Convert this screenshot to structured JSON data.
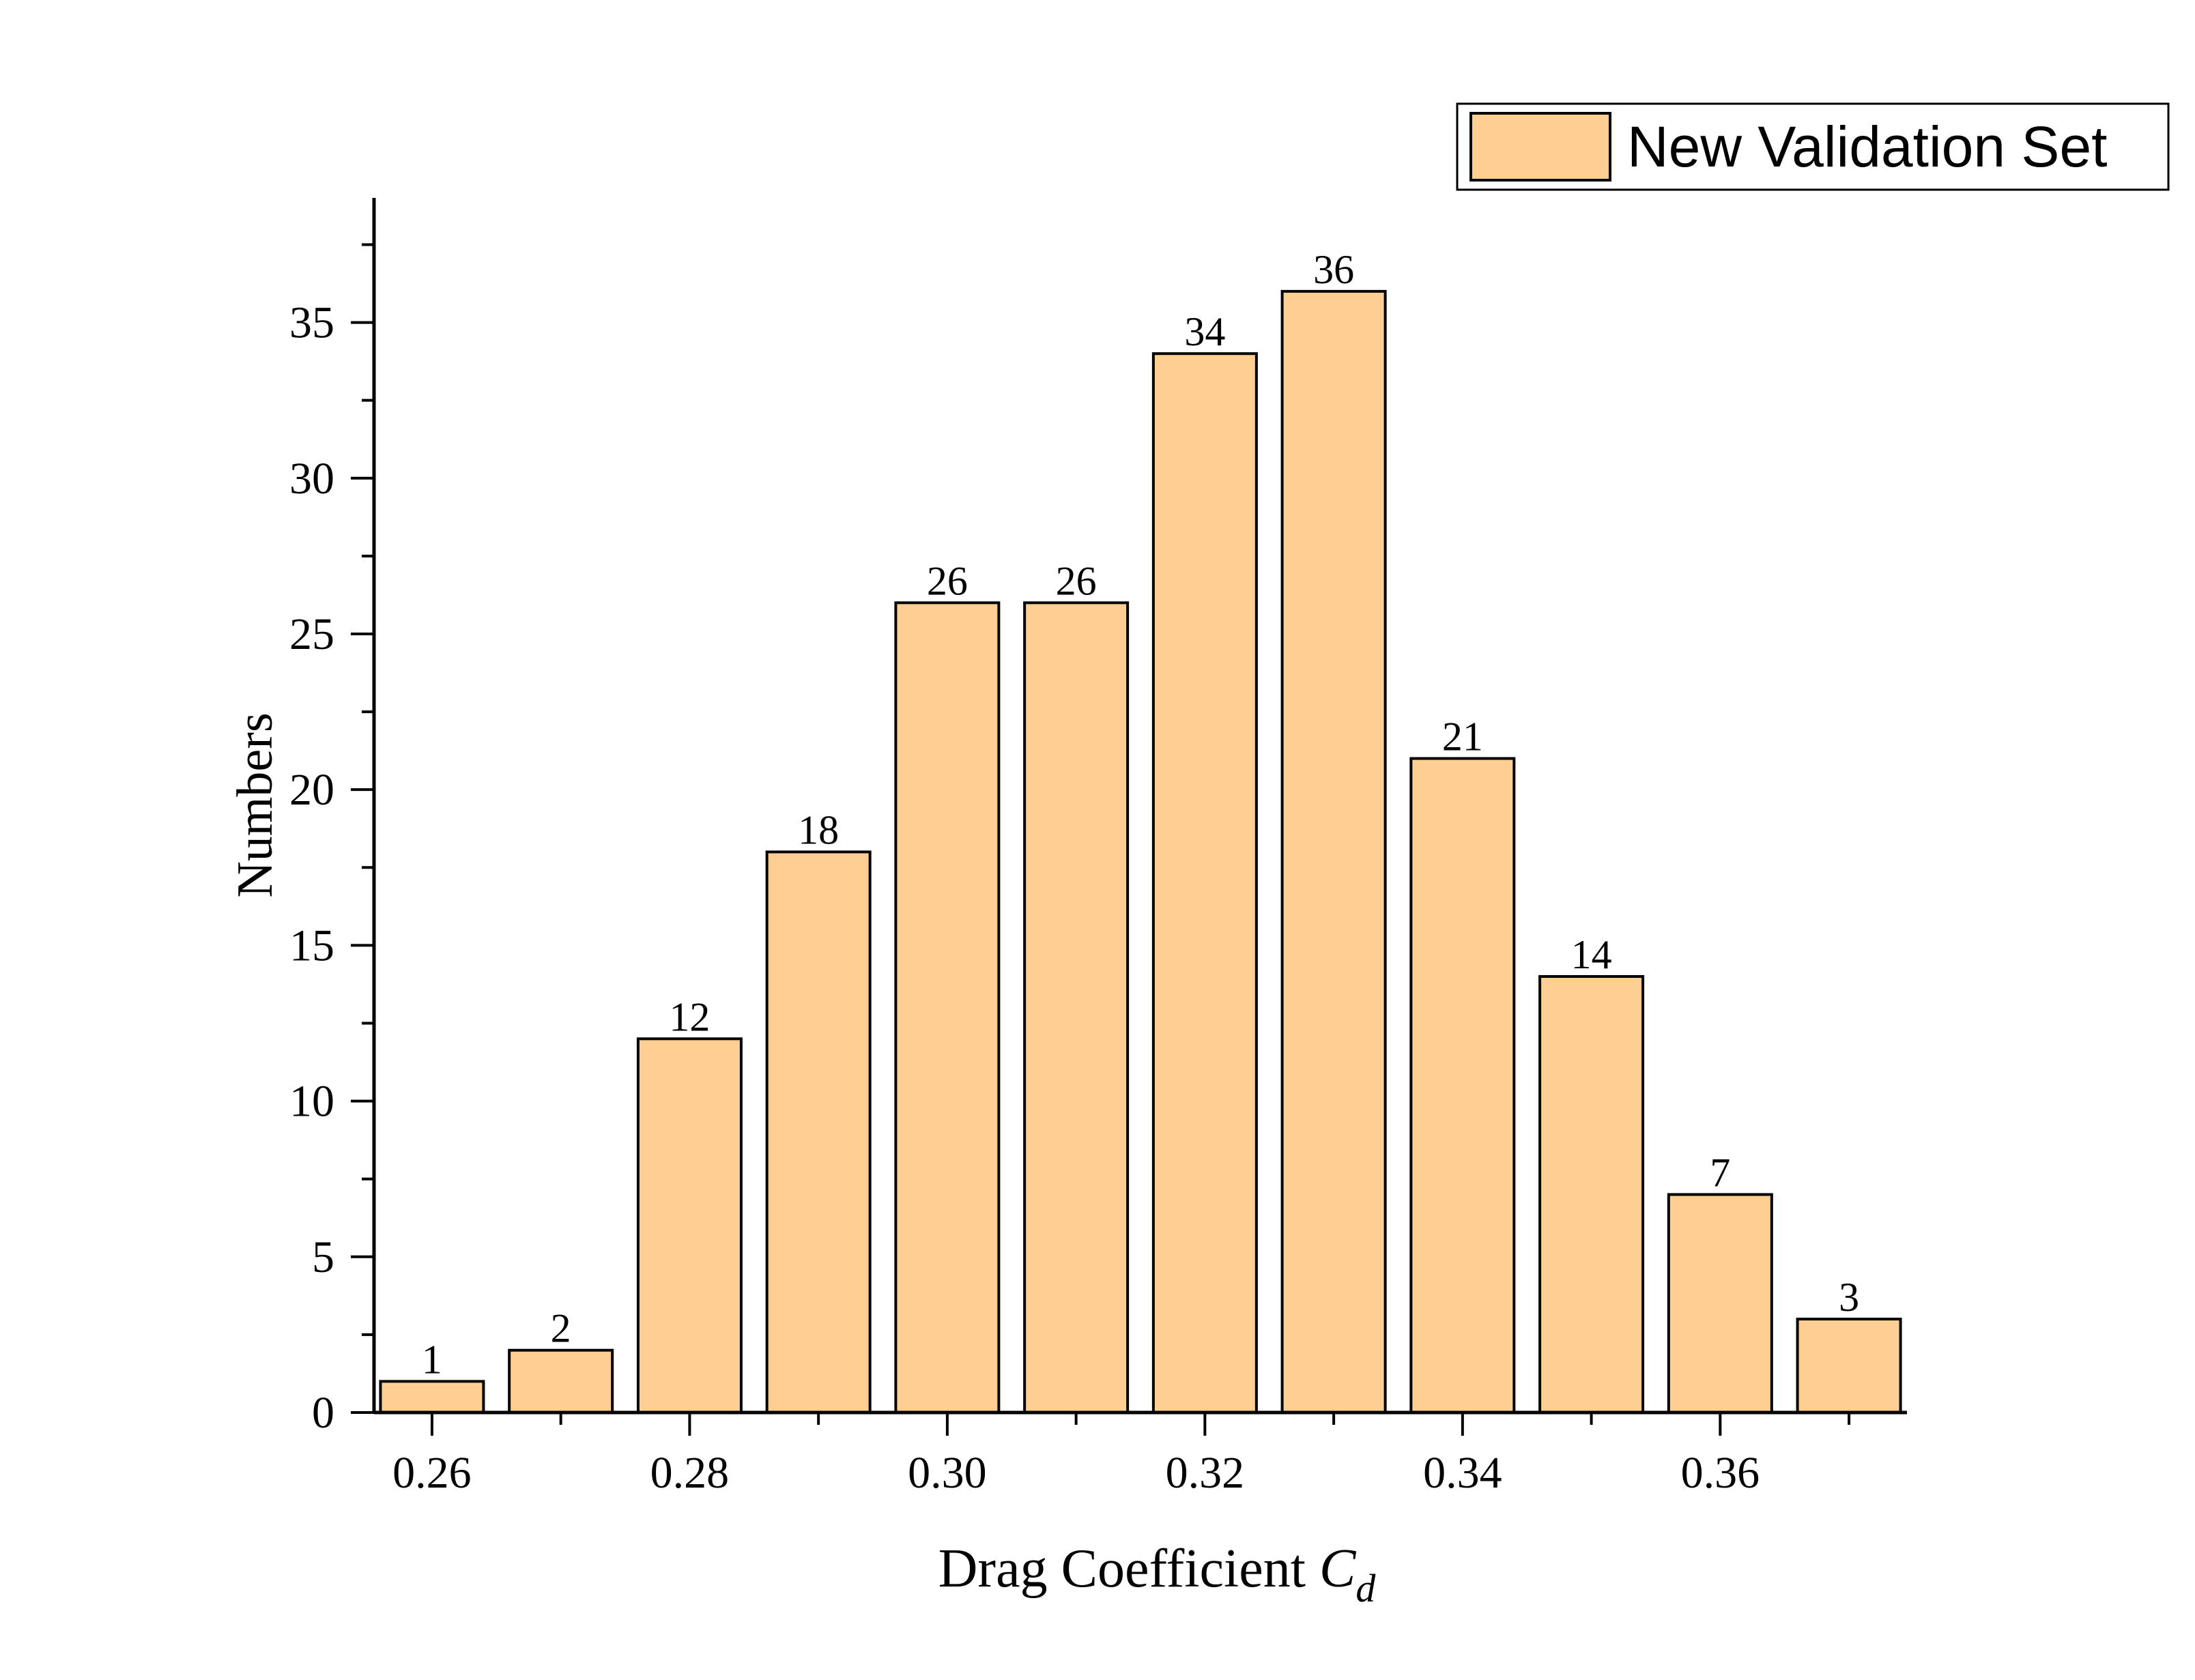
{
  "chart_data": {
    "type": "bar",
    "title": "",
    "xlabel_main": "Drag Coefficient ",
    "xlabel_symbol": "C",
    "xlabel_subscript": "d",
    "ylabel": "Numbers",
    "bin_centers": [
      0.26,
      0.27,
      0.28,
      0.29,
      0.3,
      0.31,
      0.32,
      0.33,
      0.34,
      0.35,
      0.36,
      0.37
    ],
    "values": [
      1,
      2,
      12,
      18,
      26,
      26,
      34,
      36,
      21,
      14,
      7,
      3
    ],
    "bar_width": 0.008,
    "xlim": [
      0.2555,
      0.3745
    ],
    "ylim": [
      0,
      39
    ],
    "x_ticks": [
      0.26,
      0.28,
      0.3,
      0.32,
      0.34,
      0.36
    ],
    "x_tick_labels": [
      "0.26",
      "0.28",
      "0.30",
      "0.32",
      "0.34",
      "0.36"
    ],
    "y_ticks": [
      0,
      5,
      10,
      15,
      20,
      25,
      30,
      35
    ],
    "y_tick_labels": [
      "0",
      "5",
      "10",
      "15",
      "20",
      "25",
      "30",
      "35"
    ],
    "y_minor_ticks": [
      2.5,
      7.5,
      12.5,
      17.5,
      22.5,
      27.5,
      32.5,
      37.5
    ],
    "legend": {
      "position": "top-right",
      "entries": [
        "New Validation Set"
      ]
    },
    "colors": {
      "bar_fill": "#FECE92",
      "bar_stroke": "#000000",
      "axis": "#000000",
      "text": "#000000"
    },
    "grid": false
  }
}
